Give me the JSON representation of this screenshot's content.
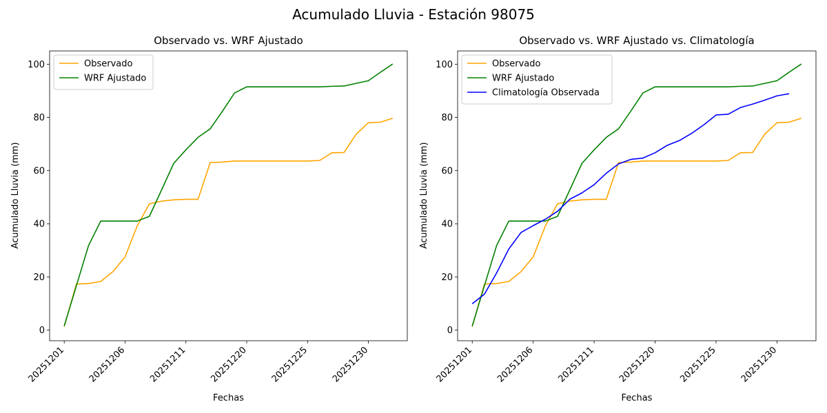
{
  "figure_title": "Acumulado Lluvia - Estación 98075",
  "colors": {
    "observado": "#ffa500",
    "wrf": "#008000",
    "clim": "#0000ff"
  },
  "chart_data": [
    {
      "type": "line",
      "title": "Observado vs. WRF Ajustado",
      "xlabel": "Fechas",
      "ylabel": "Acumulado Lluvia (mm)",
      "x_tick_labels": [
        "20251201",
        "20251206",
        "20251211",
        "20251220",
        "20251225",
        "20251230"
      ],
      "y_ticks": [
        0,
        20,
        40,
        60,
        80,
        100
      ],
      "ylim": [
        -4,
        105
      ],
      "legend_position": "upper-left",
      "series": [
        {
          "name": "Observado",
          "color": "#ffa500",
          "values": [
            1.3,
            17.3,
            17.5,
            18.3,
            22.0,
            27.5,
            39.2,
            47.5,
            48.5,
            49.0,
            49.2,
            49.2,
            63.0,
            63.2,
            63.6,
            63.6,
            63.6,
            63.6,
            63.6,
            63.6,
            63.6,
            63.8,
            66.7,
            66.8,
            73.7,
            78.0,
            78.2,
            79.7
          ]
        },
        {
          "name": "WRF Ajustado",
          "color": "#008000",
          "values": [
            1.5,
            16.7,
            31.8,
            41.0,
            41.0,
            41.0,
            41.0,
            42.8,
            52.7,
            62.7,
            67.8,
            72.5,
            75.7,
            82.3,
            89.2,
            91.5,
            91.5,
            91.5,
            91.5,
            91.5,
            91.5,
            91.5,
            91.7,
            91.8,
            92.8,
            93.8,
            97.0,
            100.1
          ]
        }
      ]
    },
    {
      "type": "line",
      "title": "Observado vs. WRF Ajustado vs. Climatología",
      "xlabel": "Fechas",
      "ylabel": "Acumulado Lluvia (mm)",
      "x_tick_labels": [
        "20251201",
        "20251206",
        "20251211",
        "20251220",
        "20251225",
        "20251230"
      ],
      "y_ticks": [
        0,
        20,
        40,
        60,
        80,
        100
      ],
      "ylim": [
        -4,
        105
      ],
      "legend_position": "upper-left",
      "series": [
        {
          "name": "Observado",
          "color": "#ffa500",
          "values": [
            1.3,
            17.3,
            17.5,
            18.3,
            22.0,
            27.5,
            39.2,
            47.5,
            48.5,
            49.0,
            49.2,
            49.2,
            63.0,
            63.2,
            63.6,
            63.6,
            63.6,
            63.6,
            63.6,
            63.6,
            63.6,
            63.8,
            66.7,
            66.8,
            73.7,
            78.0,
            78.2,
            79.7
          ]
        },
        {
          "name": "WRF Ajustado",
          "color": "#008000",
          "values": [
            1.5,
            16.7,
            31.8,
            41.0,
            41.0,
            41.0,
            41.0,
            42.8,
            52.7,
            62.7,
            67.8,
            72.5,
            75.7,
            82.3,
            89.2,
            91.5,
            91.5,
            91.5,
            91.5,
            91.5,
            91.5,
            91.5,
            91.7,
            91.8,
            92.8,
            93.8,
            97.0,
            100.1
          ]
        },
        {
          "name": "Climatología Observada",
          "color": "#0000ff",
          "values": [
            9.9,
            13.5,
            21.5,
            30.5,
            36.7,
            39.3,
            41.7,
            44.7,
            49.2,
            51.6,
            54.7,
            59.0,
            62.5,
            64.2,
            64.7,
            66.7,
            69.5,
            71.3,
            74.0,
            77.2,
            80.9,
            81.2,
            83.7,
            85.0,
            86.5,
            88.1,
            88.9
          ]
        }
      ]
    }
  ]
}
